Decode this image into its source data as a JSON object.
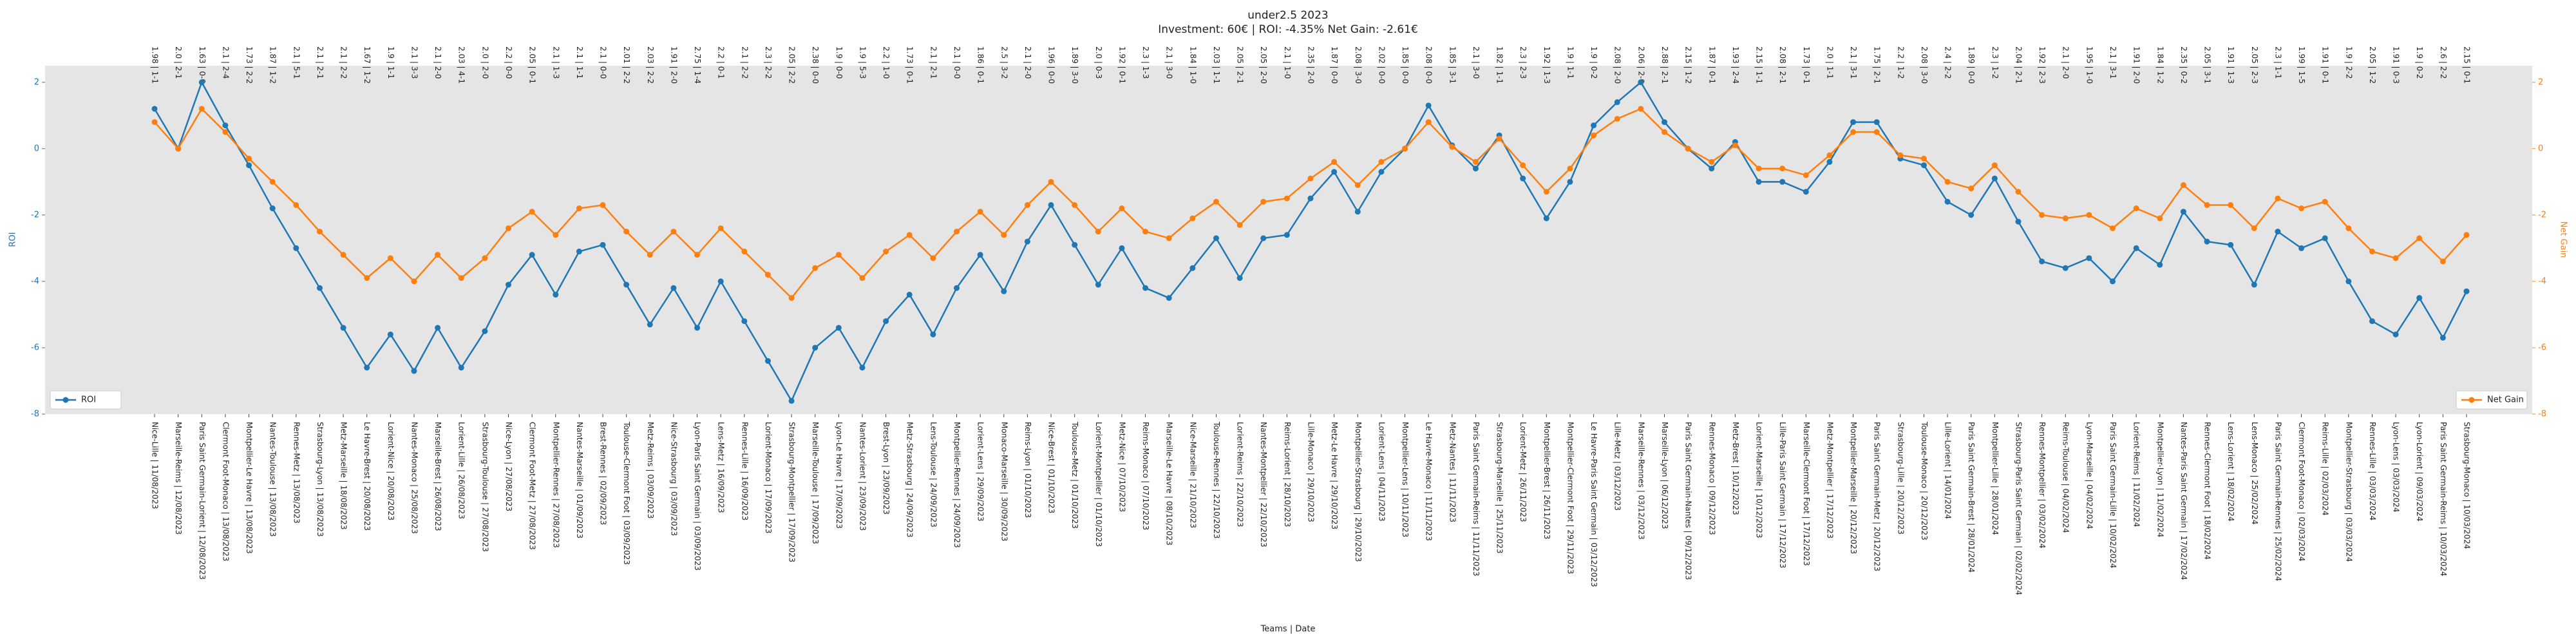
{
  "chart_data": {
    "type": "line",
    "title": "under2.5 2023",
    "subtitle": "Investment: 60€ | ROI: -4.35% Net Gain: -2.61€",
    "xlabel": "Teams | Date",
    "ylabel": "ROI",
    "y2label": "Net Gain",
    "categories": [
      "Nice-Lille | 11/08/2023",
      "Marseille-Reims | 12/08/2023",
      "Paris Saint Germain-Lorient | 12/08/2023",
      "Clermont Foot-Monaco | 13/08/2023",
      "Montpellier-Le Havre | 13/08/2023",
      "Nantes-Toulouse | 13/08/2023",
      "Rennes-Metz | 13/08/2023",
      "Strasbourg-Lyon | 13/08/2023",
      "Metz-Marseille | 18/08/2023",
      "Le Havre-Brest | 20/08/2023",
      "Lorient-Nice | 20/08/2023",
      "Nantes-Monaco | 25/08/2023",
      "Marseille-Brest | 26/08/2023",
      "Lorient-Lille | 26/08/2023",
      "Strasbourg-Toulouse | 27/08/2023",
      "Nice-Lyon | 27/08/2023",
      "Clermont Foot-Metz | 27/08/2023",
      "Montpellier-Rennes | 27/08/2023",
      "Nantes-Marseille | 01/09/2023",
      "Brest-Rennes | 02/09/2023",
      "Toulouse-Clermont Foot | 03/09/2023",
      "Metz-Reims | 03/09/2023",
      "Nice-Strasbourg | 03/09/2023",
      "Lyon-Paris Saint Germain | 03/09/2023",
      "Lens-Metz | 16/09/2023",
      "Rennes-Lille | 16/09/2023",
      "Lorient-Monaco | 17/09/2023",
      "Strasbourg-Montpellier | 17/09/2023",
      "Marseille-Toulouse | 17/09/2023",
      "Lyon-Le Havre | 17/09/2023",
      "Nantes-Lorient | 23/09/2023",
      "Brest-Lyon | 23/09/2023",
      "Metz-Strasbourg | 24/09/2023",
      "Lens-Toulouse | 24/09/2023",
      "Montpellier-Rennes | 24/09/2023",
      "Lorient-Lens | 29/09/2023",
      "Monaco-Marseille | 30/09/2023",
      "Reims-Lyon | 01/10/2023",
      "Nice-Brest | 01/10/2023",
      "Toulouse-Metz | 01/10/2023",
      "Lorient-Montpellier | 01/10/2023",
      "Metz-Nice | 07/10/2023",
      "Reims-Monaco | 07/10/2023",
      "Marseille-Le Havre | 08/10/2023",
      "Nice-Marseille | 21/10/2023",
      "Toulouse-Rennes | 22/10/2023",
      "Lorient-Reims | 22/10/2023",
      "Nantes-Montpellier | 22/10/2023",
      "Reims-Lorient | 28/10/2023",
      "Lille-Monaco | 29/10/2023",
      "Metz-Le Havre | 29/10/2023",
      "Montpellier-Strasbourg | 29/10/2023",
      "Lorient-Lens | 04/11/2023",
      "Montpellier-Lens | 10/11/2023",
      "Le Havre-Monaco | 11/11/2023",
      "Metz-Nantes | 11/11/2023",
      "Paris Saint Germain-Reims | 11/11/2023",
      "Strasbourg-Marseille | 25/11/2023",
      "Lorient-Metz | 26/11/2023",
      "Montpellier-Brest | 26/11/2023",
      "Montpellier-Clermont Foot | 29/11/2023",
      "Le Havre-Paris Saint Germain | 03/12/2023",
      "Lille-Metz | 03/12/2023",
      "Marseille-Rennes | 03/12/2023",
      "Marseille-Lyon | 06/12/2023",
      "Paris Saint Germain-Nantes | 09/12/2023",
      "Rennes-Monaco | 09/12/2023",
      "Metz-Brest | 10/12/2023",
      "Lorient-Marseille | 10/12/2023",
      "Lille-Paris Saint Germain | 17/12/2023",
      "Marseille-Clermont Foot | 17/12/2023",
      "Metz-Montpellier | 17/12/2023",
      "Montpellier-Marseille | 20/12/2023",
      "Paris Saint Germain-Metz | 20/12/2023",
      "Strasbourg-Lille | 20/12/2023",
      "Toulouse-Monaco | 20/12/2023",
      "Lille-Lorient | 14/01/2024",
      "Paris Saint Germain-Brest | 28/01/2024",
      "Montpellier-Lille | 28/01/2024",
      "Strasbourg-Paris Saint Germain | 02/02/2024",
      "Rennes-Montpellier | 03/02/2024",
      "Reims-Toulouse | 04/02/2024",
      "Lyon-Marseille | 04/02/2024",
      "Paris Saint Germain-Lille | 10/02/2024",
      "Lorient-Reims | 11/02/2024",
      "Montpellier-Lyon | 11/02/2024",
      "Nantes-Paris Saint Germain | 17/02/2024",
      "Rennes-Clermont Foot | 18/02/2024",
      "Lens-Lorient | 18/02/2024",
      "Lens-Monaco | 25/02/2024",
      "Paris Saint Germain-Rennes | 25/02/2024",
      "Clermont Foot-Monaco | 02/03/2024",
      "Reims-Lille | 02/03/2024",
      "Montpellier-Strasbourg | 03/03/2024",
      "Rennes-Lille | 03/03/2024",
      "Lyon-Lens | 03/03/2024",
      "Lyon-Lorient | 09/03/2024",
      "Paris Saint Germain-Reims | 10/03/2024",
      "Strasbourg-Monaco | 10/03/2024"
    ],
    "top_labels": [
      "1.98 | 1-1",
      "2.0 | 2-1",
      "1.63 | 0-0",
      "2.1 | 2-4",
      "1.73 | 2-2",
      "1.87 | 1-2",
      "2.1 | 5-1",
      "2.1 | 2-1",
      "2.1 | 2-2",
      "1.67 | 1-2",
      "1.9 | 1-1",
      "2.1 | 3-3",
      "2.1 | 2-0",
      "2.03 | 4-1",
      "2.0 | 2-0",
      "2.2 | 0-0",
      "2.05 | 0-1",
      "2.1 | 1-3",
      "2.1 | 1-1",
      "2.1 | 0-0",
      "2.01 | 2-2",
      "2.03 | 2-2",
      "1.91 | 2-0",
      "2.75 | 1-4",
      "2.2 | 0-1",
      "2.1 | 2-2",
      "2.3 | 2-2",
      "2.05 | 2-2",
      "2.38 | 0-0",
      "1.9 | 0-0",
      "1.9 | 5-3",
      "2.2 | 1-0",
      "1.73 | 0-1",
      "2.1 | 2-1",
      "2.1 | 0-0",
      "1.86 | 0-1",
      "2.5 | 3-2",
      "2.1 | 2-0",
      "1.96 | 0-0",
      "1.89 | 3-0",
      "2.0 | 0-3",
      "1.92 | 0-1",
      "2.3 | 1-3",
      "2.1 | 3-0",
      "1.84 | 1-0",
      "2.03 | 1-1",
      "2.05 | 2-1",
      "2.05 | 2-0",
      "2.1 | 1-0",
      "2.35 | 2-0",
      "1.87 | 0-0",
      "2.08 | 3-0",
      "2.02 | 0-0",
      "1.85 | 0-0",
      "2.08 | 0-0",
      "1.85 | 3-1",
      "2.1 | 3-0",
      "1.82 | 1-1",
      "2.3 | 2-3",
      "1.92 | 1-3",
      "1.9 | 1-1",
      "1.9 | 0-2",
      "2.08 | 2-0",
      "2.06 | 2-0",
      "2.88 | 2-1",
      "2.15 | 1-2",
      "1.87 | 0-1",
      "1.93 | 2-4",
      "2.15 | 1-1",
      "2.08 | 2-1",
      "1.73 | 0-1",
      "2.0 | 1-1",
      "2.1 | 3-1",
      "1.75 | 2-1",
      "2.2 | 1-2",
      "2.08 | 3-0",
      "2.4 | 2-2",
      "1.89 | 0-0",
      "2.3 | 1-2",
      "2.04 | 2-1",
      "1.92 | 2-3",
      "2.1 | 2-0",
      "1.95 | 1-0",
      "2.1 | 3-1",
      "1.91 | 2-0",
      "1.84 | 1-2",
      "2.35 | 0-2",
      "2.05 | 3-1",
      "1.91 | 1-3",
      "2.05 | 2-3",
      "2.3 | 1-1",
      "1.99 | 1-5",
      "1.91 | 0-1",
      "1.9 | 2-2",
      "2.05 | 1-2",
      "1.91 | 0-3",
      "1.9 | 0-2",
      "2.6 | 2-2",
      "2.15 | 0-1"
    ],
    "series": [
      {
        "name": "ROI",
        "color": "#1f77b4",
        "axis": "y",
        "legend": "lower left",
        "values": [
          1.2,
          0,
          2.0,
          0.7,
          -0.5,
          -1.8,
          -3.0,
          -4.2,
          -5.4,
          -6.6,
          -5.6,
          -6.7,
          -5.4,
          -6.6,
          -5.5,
          -4.1,
          -3.2,
          -4.4,
          -3.1,
          -2.9,
          -4.1,
          -5.3,
          -4.2,
          -5.4,
          -4.0,
          -5.2,
          -6.4,
          -7.6,
          -6.0,
          -5.4,
          -6.6,
          -5.2,
          -4.4,
          -5.6,
          -4.2,
          -3.2,
          -4.3,
          -2.8,
          -1.7,
          -2.9,
          -4.1,
          -3.0,
          -4.2,
          -4.5,
          -3.6,
          -2.7,
          -3.9,
          -2.7,
          -2.6,
          -1.5,
          -0.7,
          -1.9,
          -0.7,
          0,
          1.3,
          0.1,
          -0.6,
          0.4,
          -0.9,
          -2.1,
          -1.0,
          0.7,
          1.4,
          2.0,
          0.8,
          0,
          -0.6,
          0.2,
          -1.0,
          -1.0,
          -1.3,
          -0.4,
          0.8,
          0.8,
          -0.3,
          -0.5,
          -1.6,
          -2.0,
          -0.9,
          -2.2,
          -3.4,
          -3.6,
          -3.3,
          -4.0,
          -3.0,
          -3.5,
          -1.9,
          -2.8,
          -2.9,
          -4.1,
          -2.5,
          -3.0,
          -2.7,
          -4.0,
          -5.2,
          -5.6,
          -4.5,
          -5.7,
          -4.3
        ]
      },
      {
        "name": "Net Gain",
        "color": "#ff7f0e",
        "axis": "y2",
        "legend": "lower right",
        "values": [
          0.8,
          0,
          1.2,
          0.5,
          -0.3,
          -1.0,
          -1.7,
          -2.5,
          -3.2,
          -3.9,
          -3.3,
          -4.0,
          -3.2,
          -3.9,
          -3.3,
          -2.4,
          -1.9,
          -2.6,
          -1.8,
          -1.7,
          -2.5,
          -3.2,
          -2.5,
          -3.2,
          -2.4,
          -3.1,
          -3.8,
          -4.5,
          -3.6,
          -3.2,
          -3.9,
          -3.1,
          -2.6,
          -3.3,
          -2.5,
          -1.9,
          -2.6,
          -1.7,
          -1.0,
          -1.7,
          -2.5,
          -1.8,
          -2.5,
          -2.7,
          -2.1,
          -1.6,
          -2.3,
          -1.6,
          -1.5,
          -0.9,
          -0.4,
          -1.1,
          -0.4,
          0,
          0.8,
          0.05,
          -0.4,
          0.3,
          -0.5,
          -1.3,
          -0.6,
          0.4,
          0.9,
          1.2,
          0.5,
          0,
          -0.4,
          0.1,
          -0.6,
          -0.6,
          -0.8,
          -0.2,
          0.5,
          0.5,
          -0.2,
          -0.3,
          -1.0,
          -1.2,
          -0.5,
          -1.3,
          -2.0,
          -2.1,
          -2.0,
          -2.4,
          -1.8,
          -2.1,
          -1.1,
          -1.7,
          -1.7,
          -2.4,
          -1.5,
          -1.8,
          -1.6,
          -2.4,
          -3.1,
          -3.3,
          -2.7,
          -3.4,
          -2.6
        ]
      }
    ],
    "ylim": [
      -8,
      2.5
    ],
    "yticks": [
      2,
      0,
      -2,
      -4,
      -6,
      -8
    ],
    "y2lim": [
      -8,
      2.5
    ],
    "y2ticks": [
      2,
      0,
      -2,
      -4,
      -6,
      -8
    ]
  }
}
